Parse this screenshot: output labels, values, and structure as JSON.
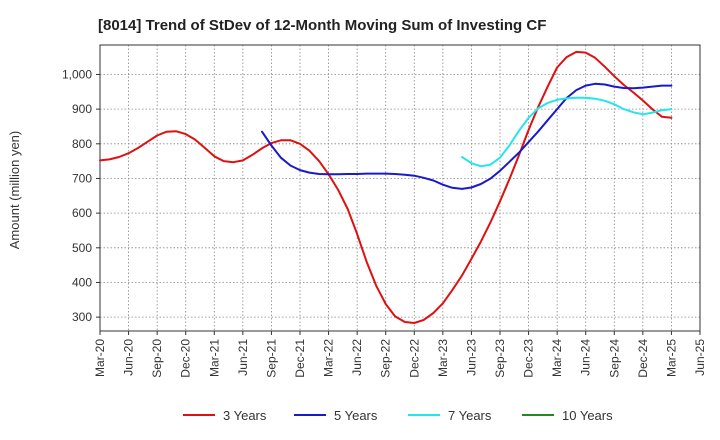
{
  "chart_data": {
    "type": "line",
    "title": "[8014]  Trend of StDev of 12-Month Moving Sum of Investing CF",
    "xlabel": "",
    "ylabel": "Amount (million yen)",
    "ylim": [
      260,
      1085
    ],
    "yticks": [
      300,
      400,
      500,
      600,
      700,
      800,
      900,
      1000
    ],
    "ytick_labels": [
      "300",
      "400",
      "500",
      "600",
      "700",
      "800",
      "900",
      "1,000"
    ],
    "x_tick_labels": [
      "Mar-20",
      "Jun-20",
      "Sep-20",
      "Dec-20",
      "Mar-21",
      "Jun-21",
      "Sep-21",
      "Dec-21",
      "Mar-22",
      "Jun-22",
      "Sep-22",
      "Dec-22",
      "Mar-23",
      "Jun-23",
      "Sep-23",
      "Dec-23",
      "Mar-24",
      "Jun-24",
      "Sep-24",
      "Dec-24",
      "Mar-25",
      "Jun-25"
    ],
    "grid": true,
    "legend_position": "bottom",
    "series": [
      {
        "name": "3 Years",
        "color": "#dd1111",
        "x": [
          0,
          0.33,
          0.67,
          1,
          1.33,
          1.67,
          2,
          2.33,
          2.67,
          3,
          3.33,
          3.67,
          4,
          4.33,
          4.67,
          5,
          5.33,
          5.67,
          6,
          6.33,
          6.67,
          7,
          7.33,
          7.67,
          8,
          8.33,
          8.67,
          9,
          9.33,
          9.67,
          10,
          10.33,
          10.67,
          11,
          11.33,
          11.67,
          12,
          12.33,
          12.67,
          13,
          13.33,
          13.67,
          14,
          14.33,
          14.67,
          15,
          15.33,
          15.67,
          16,
          16.33,
          16.67,
          17,
          17.33,
          17.67,
          18,
          18.33,
          18.67,
          19,
          19.33,
          19.67,
          20
        ],
        "values": [
          752,
          755,
          762,
          773,
          788,
          806,
          824,
          835,
          836,
          828,
          812,
          788,
          764,
          750,
          747,
          752,
          768,
          787,
          802,
          810,
          810,
          800,
          780,
          750,
          712,
          668,
          612,
          540,
          460,
          390,
          338,
          302,
          286,
          283,
          292,
          312,
          340,
          378,
          420,
          468,
          518,
          574,
          634,
          698,
          768,
          840,
          905,
          965,
          1020,
          1050,
          1065,
          1063,
          1048,
          1022,
          995,
          970,
          948,
          925,
          900,
          878,
          875
        ]
      },
      {
        "name": "5 Years",
        "color": "#1a1acc",
        "x": [
          5.67,
          6,
          6.33,
          6.67,
          7,
          7.33,
          7.67,
          8,
          8.33,
          8.67,
          9,
          9.33,
          9.67,
          10,
          10.33,
          10.67,
          11,
          11.33,
          11.67,
          12,
          12.33,
          12.67,
          13,
          13.33,
          13.67,
          14,
          14.33,
          14.67,
          15,
          15.33,
          15.67,
          16,
          16.33,
          16.67,
          17,
          17.33,
          17.67,
          18,
          18.33,
          18.67,
          19,
          19.33,
          19.67,
          20
        ],
        "values": [
          835,
          795,
          760,
          737,
          724,
          717,
          713,
          712,
          712,
          713,
          713,
          714,
          714,
          714,
          713,
          711,
          708,
          702,
          694,
          682,
          673,
          670,
          674,
          684,
          700,
          722,
          748,
          775,
          805,
          835,
          868,
          900,
          932,
          955,
          968,
          973,
          971,
          965,
          961,
          960,
          962,
          965,
          968,
          968
        ]
      },
      {
        "name": "7 Years",
        "color": "#22e6ee",
        "x": [
          12.67,
          13,
          13.33,
          13.67,
          14,
          14.33,
          14.67,
          15,
          15.33,
          15.67,
          16,
          16.33,
          16.67,
          17,
          17.33,
          17.67,
          18,
          18.33,
          18.67,
          19,
          19.33,
          19.67,
          20
        ],
        "values": [
          762,
          744,
          735,
          740,
          760,
          795,
          838,
          875,
          902,
          918,
          927,
          931,
          933,
          933,
          930,
          924,
          914,
          900,
          891,
          885,
          890,
          897,
          900
        ]
      },
      {
        "name": "10 Years",
        "color": "#228822",
        "x": [],
        "values": []
      }
    ]
  }
}
